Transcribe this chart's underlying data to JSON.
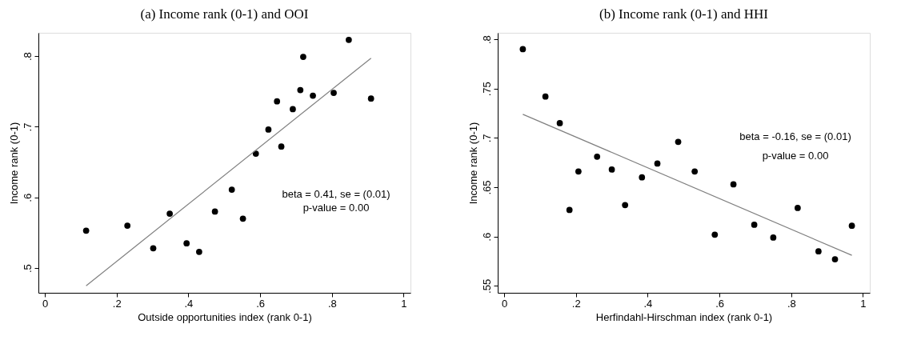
{
  "chart_data": [
    {
      "type": "scatter",
      "title": "(a) Income rank (0-1) and OOI",
      "xlabel": "Outside opportunities index (rank 0-1)",
      "ylabel": "Income rank (0-1)",
      "xlim": [
        -0.018,
        1.019
      ],
      "ylim": [
        0.465,
        0.833
      ],
      "xticks": [
        0,
        {
          "value": 0.2,
          "label": ".2"
        },
        {
          "value": 0.4,
          "label": ".4"
        },
        {
          "value": 0.6,
          "label": ".6"
        },
        {
          "value": 0.8,
          "label": ".8"
        },
        1
      ],
      "yticks": [
        {
          "value": 0.5,
          "label": ".5"
        },
        {
          "value": 0.6,
          "label": ".6"
        },
        {
          "value": 0.7,
          "label": ".7"
        },
        {
          "value": 0.8,
          "label": ".8"
        }
      ],
      "grid": false,
      "marker": "circle",
      "series": [
        {
          "color": "#000000",
          "x": [
            0.115,
            0.23,
            0.302,
            0.348,
            0.395,
            0.43,
            0.474,
            0.521,
            0.552,
            0.588,
            0.623,
            0.647,
            0.659,
            0.691,
            0.712,
            0.72,
            0.747,
            0.805,
            0.847,
            0.909
          ],
          "values": [
            0.553,
            0.56,
            0.528,
            0.577,
            0.535,
            0.523,
            0.58,
            0.611,
            0.57,
            0.662,
            0.696,
            0.736,
            0.672,
            0.725,
            0.752,
            0.799,
            0.744,
            0.748,
            0.823,
            0.74
          ]
        },
        {
          "type": "line",
          "marker": "none",
          "color": "#808080",
          "x": [
            0.115,
            0.909
          ],
          "values": [
            0.475,
            0.797
          ]
        }
      ],
      "annotations": [
        "beta = 0.41, se = (0.01)",
        "p-value = 0.00"
      ]
    },
    {
      "type": "scatter",
      "title": "(b) Income rank (0-1) and HHI",
      "xlabel": "Herfindahl-Hirschman index (rank 0-1)",
      "ylabel": "Income rank (0-1)",
      "xlim": [
        -0.018,
        1.019
      ],
      "ylim": [
        0.543,
        0.8066
      ],
      "xticks": [
        0,
        {
          "value": 0.2,
          "label": ".2"
        },
        {
          "value": 0.4,
          "label": ".4"
        },
        {
          "value": 0.6,
          "label": ".6"
        },
        {
          "value": 0.8,
          "label": ".8"
        },
        1
      ],
      "yticks": [
        {
          "value": 0.55,
          "label": ".55"
        },
        {
          "value": 0.6,
          "label": ".6"
        },
        {
          "value": 0.65,
          "label": ".65"
        },
        {
          "value": 0.7,
          "label": ".7"
        },
        {
          "value": 0.75,
          "label": ".75"
        },
        {
          "value": 0.8,
          "label": ".8"
        }
      ],
      "grid": false,
      "marker": "circle",
      "series": [
        {
          "color": "#000000",
          "x": [
            0.052,
            0.115,
            0.155,
            0.182,
            0.207,
            0.259,
            0.3,
            0.337,
            0.384,
            0.427,
            0.485,
            0.531,
            0.587,
            0.639,
            0.697,
            0.75,
            0.818,
            0.876,
            0.922,
            0.969
          ],
          "values": [
            0.79,
            0.742,
            0.715,
            0.627,
            0.666,
            0.681,
            0.668,
            0.632,
            0.66,
            0.674,
            0.696,
            0.666,
            0.602,
            0.653,
            0.612,
            0.599,
            0.629,
            0.585,
            0.577,
            0.611
          ]
        },
        {
          "type": "line",
          "marker": "none",
          "color": "#808080",
          "x": [
            0.052,
            0.969
          ],
          "values": [
            0.724,
            0.581
          ]
        }
      ],
      "annotations": [
        "beta = -0.16, se = (0.01)",
        "p-value = 0.00"
      ]
    }
  ]
}
